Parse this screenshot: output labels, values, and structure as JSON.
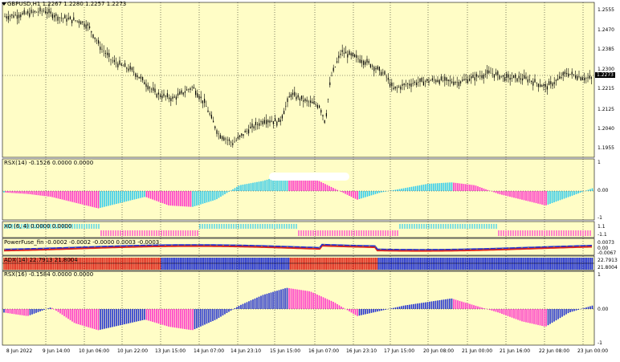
{
  "colors": {
    "background": "#fffdc6",
    "grid": "#b9b79c",
    "candle": "#000000",
    "line": "#000000",
    "magenta": "#ff33cc",
    "cyan": "#33ccee",
    "blue": "#1f2fd1",
    "red": "#e0261a",
    "yellow": "#e8d800"
  },
  "main": {
    "title": "GBPUSD,H1  1.2267 1.2280 1.2257 1.2273",
    "scale": [
      "1.2555",
      "1.2470",
      "1.2385",
      "1.2300",
      "1.2215",
      "1.2125",
      "1.2040",
      "1.1955"
    ],
    "current": "1.2273",
    "chart_data": {
      "type": "candlestick",
      "ylim": [
        1.193,
        1.259
      ],
      "x": [
        "9 Jun 14:00",
        "10 Jun 06:00",
        "10 Jun 22:00",
        "13 Jun 15:00",
        "14 Jun 07:00",
        "14 Jun 23:10",
        "15 Jun 15:00",
        "16 Jun 07:00",
        "16 Jun 23:10",
        "17 Jun 15:00",
        "20 Jun 08:00",
        "21 Jun 00:00",
        "21 Jun 16:00",
        "22 Jun 08:00",
        "23 Jun 00:00"
      ],
      "close": [
        1.254,
        1.251,
        1.235,
        1.22,
        1.205,
        1.201,
        1.213,
        1.238,
        1.231,
        1.221,
        1.224,
        1.227,
        1.228,
        1.225,
        1.227
      ]
    }
  },
  "rsx14": {
    "title": "RSX(14) -0.1526 0.0000 0.0000",
    "scale": [
      "1",
      "0.00",
      "-1"
    ],
    "chart_data": {
      "type": "histogram",
      "ylim": [
        -1,
        1
      ],
      "values": [
        -0.05,
        -0.1,
        -0.2,
        -0.4,
        -0.6,
        -0.4,
        -0.2,
        -0.5,
        -0.55,
        -0.3,
        0.2,
        0.35,
        0.6,
        0.5,
        0.1,
        -0.3,
        -0.05,
        0.1,
        0.25,
        0.3,
        0.2,
        -0.1,
        -0.3,
        -0.5,
        -0.2,
        0.1
      ]
    }
  },
  "xo": {
    "title": "XO (6, 4) 0.0000 0.0000",
    "scale": [
      "1.1",
      "-1.1"
    ]
  },
  "powerfuse": {
    "title": "PowerFuse_fin -0.0002 -0.0002 -0.0000 0.0003 -0.0003",
    "scale": [
      "0.0073",
      "0.00",
      "-0.0067"
    ]
  },
  "adx": {
    "title": "ADX(14) 22.7913 21.8004",
    "scale": [
      "22.7913",
      "21.8004"
    ]
  },
  "rsx16": {
    "title": "RSX(16) -0.1584 0.0000 0.0000",
    "scale": [
      "1",
      "0.00",
      "-1"
    ],
    "chart_data": {
      "type": "histogram",
      "ylim": [
        -1,
        1
      ],
      "values": [
        -0.1,
        -0.2,
        0.05,
        -0.4,
        -0.6,
        -0.45,
        -0.3,
        -0.5,
        -0.6,
        -0.3,
        0.1,
        0.4,
        0.6,
        0.5,
        0.2,
        -0.2,
        -0.05,
        0.1,
        0.2,
        0.3,
        0.1,
        -0.1,
        -0.35,
        -0.5,
        -0.1,
        0.1
      ]
    }
  },
  "xaxis": [
    "8 Jun 2022",
    "9 Jun 14:00",
    "10 Jun 06:00",
    "10 Jun 22:00",
    "13 Jun 15:00",
    "14 Jun 07:00",
    "14 Jun 23:10",
    "15 Jun 15:00",
    "16 Jun 07:00",
    "16 Jun 23:10",
    "17 Jun 15:00",
    "20 Jun 08:00",
    "21 Jun 00:00",
    "21 Jun 16:00",
    "22 Jun 08:00",
    "23 Jun 00:00"
  ]
}
